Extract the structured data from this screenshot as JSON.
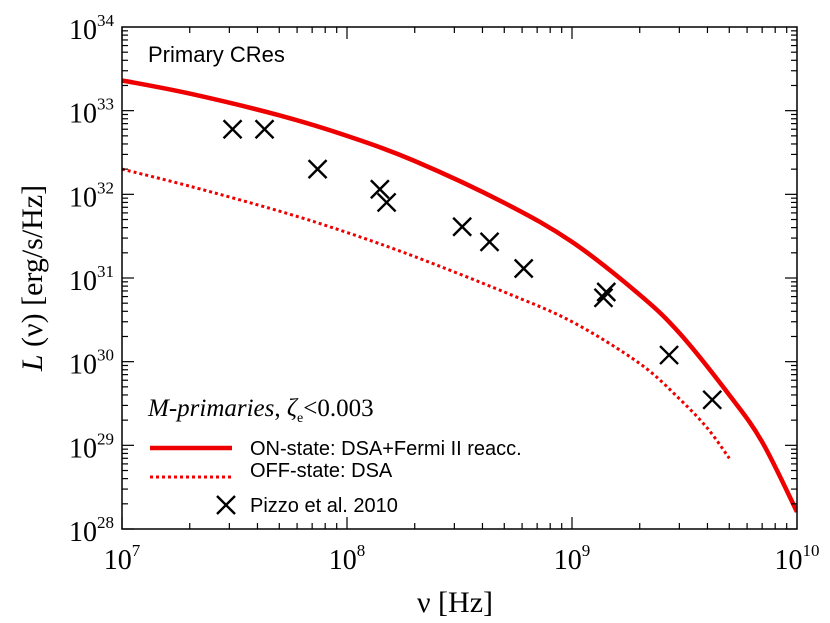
{
  "chart_data": {
    "type": "line",
    "xscale": "log",
    "yscale": "log",
    "xlim": [
      10000000.0,
      10000000000.0
    ],
    "ylim": [
      1e+28,
      1e+34
    ],
    "xlabel": {
      "prefix": "ν [Hz]"
    },
    "ylabel": {
      "symbol": "L",
      "rest": " (ν) [erg/s/Hz]"
    },
    "x_ticks": [
      {
        "value": 10000000.0,
        "base": "10",
        "exp": "7"
      },
      {
        "value": 100000000.0,
        "base": "10",
        "exp": "8"
      },
      {
        "value": 1000000000.0,
        "base": "10",
        "exp": "9"
      },
      {
        "value": 10000000000.0,
        "base": "10",
        "exp": "10"
      }
    ],
    "y_ticks": [
      {
        "value": 1e+28,
        "base": "10",
        "exp": "28"
      },
      {
        "value": 1e+29,
        "base": "10",
        "exp": "29"
      },
      {
        "value": 1e+30,
        "base": "10",
        "exp": "30"
      },
      {
        "value": 1e+31,
        "base": "10",
        "exp": "31"
      },
      {
        "value": 1e+32,
        "base": "10",
        "exp": "32"
      },
      {
        "value": 1e+33,
        "base": "10",
        "exp": "33"
      },
      {
        "value": 1e+34,
        "base": "10",
        "exp": "34"
      }
    ],
    "annotation": "Primary CRes",
    "legend_heading": {
      "italic": "M-primaries",
      "sep": ",  ",
      "symbol": "ζ",
      "sub": "e",
      "rest": "<0.003"
    },
    "legend_position": "bottom-left",
    "grid": false,
    "series": [
      {
        "name": "ON-state:  DSA+Fermi II reacc.",
        "style": "solid",
        "color": "#ee0000",
        "x": [
          10000000.0,
          20000000.0,
          50000000.0,
          100000000.0,
          200000000.0,
          500000000.0,
          1000000000.0,
          2000000000.0,
          3000000000.0,
          5000000000.0,
          7000000000.0,
          10000000000.0
        ],
        "y": [
          2.3e+33,
          1.6e+33,
          8.8e+32,
          5e+32,
          2.5e+32,
          7.9e+31,
          2.7e+31,
          6.3e+30,
          2.2e+30,
          4e+29,
          1.1e+29,
          1.6e+28
        ]
      },
      {
        "name": "OFF-state: DSA",
        "style": "dotted",
        "color": "#ee0000",
        "x": [
          10000000.0,
          20000000.0,
          50000000.0,
          100000000.0,
          200000000.0,
          500000000.0,
          1000000000.0,
          2000000000.0,
          3000000000.0,
          4000000000.0,
          5000000000.0
        ],
        "y": [
          2e+32,
          1.25e+32,
          6.3e+31,
          3.5e+31,
          1.8e+31,
          6.8e+30,
          3e+30,
          9.5e+29,
          3.6e+29,
          1.6e+29,
          7e+28
        ]
      },
      {
        "name": "Pizzo et al. 2010",
        "style": "marker-x",
        "color": "#000000",
        "x": [
          31000000.0,
          43000000.0,
          74000000.0,
          140000000.0,
          150000000.0,
          325000000.0,
          430000000.0,
          610000000.0,
          1380000000.0,
          1420000000.0,
          2700000000.0,
          4200000000.0
        ],
        "y": [
          6e+32,
          6e+32,
          2e+32,
          1.15e+32,
          8e+31,
          4.1e+31,
          2.7e+31,
          1.3e+31,
          5.8e+30,
          6.8e+30,
          1.2e+30,
          3.5e+29
        ]
      }
    ]
  }
}
